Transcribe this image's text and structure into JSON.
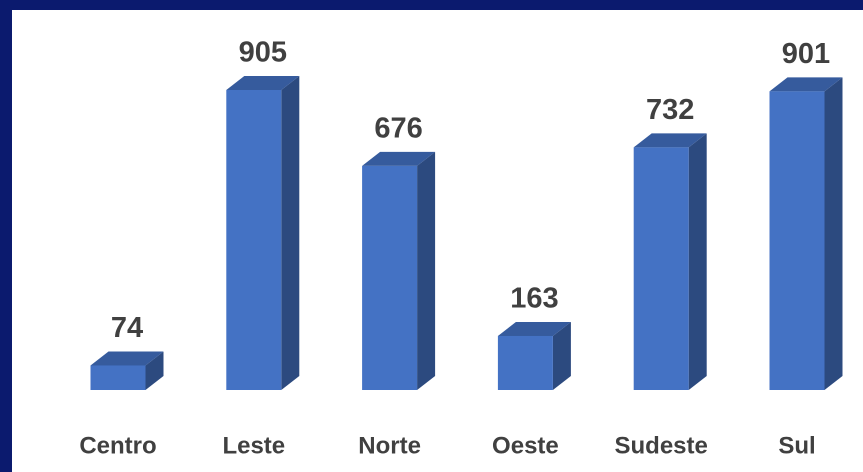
{
  "chart_data": {
    "type": "bar",
    "categories": [
      "Centro",
      "Leste",
      "Norte",
      "Oeste",
      "Sudeste",
      "Sul"
    ],
    "values": [
      74,
      905,
      676,
      163,
      732,
      901
    ],
    "color": "#4472c4"
  }
}
